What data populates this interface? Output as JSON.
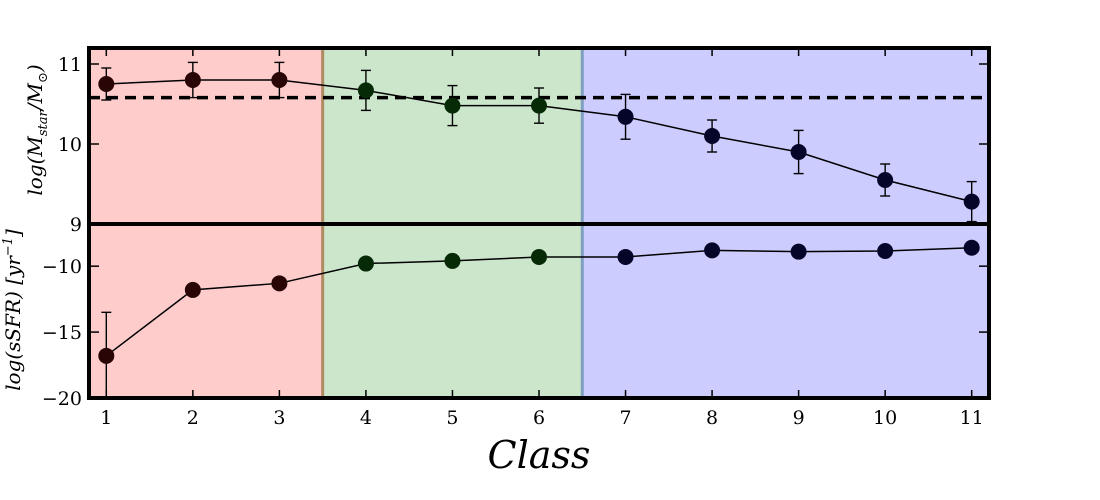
{
  "chart_data": {
    "type": "line",
    "xlabel": "Class",
    "x": [
      1,
      2,
      3,
      4,
      5,
      6,
      7,
      8,
      9,
      10,
      11
    ],
    "xlim": [
      0.8,
      11.2
    ],
    "shaded_regions": [
      {
        "from": 0.8,
        "to": 3.5,
        "color": "#ffcccc",
        "edge": "#b08a60"
      },
      {
        "from": 3.5,
        "to": 6.5,
        "color": "#cce6cc",
        "edge": "#7f9fc0"
      },
      {
        "from": 6.5,
        "to": 11.2,
        "color": "#ccccff",
        "edge": "#7f9fc0"
      }
    ],
    "panels": [
      {
        "ylabel": "log(M_star/M_⊙)",
        "ylim": [
          9,
          11.2
        ],
        "yticks": [
          9,
          10,
          11
        ],
        "values": [
          10.75,
          10.8,
          10.8,
          10.67,
          10.48,
          10.48,
          10.34,
          10.1,
          9.9,
          9.55,
          9.28
        ],
        "errors": [
          0.2,
          0.22,
          0.22,
          0.25,
          0.25,
          0.22,
          0.28,
          0.2,
          0.27,
          0.2,
          0.25
        ],
        "reference_line": 10.58
      },
      {
        "ylabel": "log(sSFR) [yr^-1]",
        "ylim": [
          -20,
          -6.8
        ],
        "yticks": [
          -20,
          -15,
          -10
        ],
        "values": [
          -16.8,
          -11.8,
          -11.3,
          -9.8,
          -9.6,
          -9.3,
          -9.3,
          -8.8,
          -8.9,
          -8.85,
          -8.6
        ],
        "errors": [
          3.3,
          0.3,
          0.3,
          0.3,
          0.2,
          0.2,
          0.2,
          0.2,
          0.2,
          0.2,
          0.2
        ]
      }
    ]
  },
  "colors": {
    "marker_red": "#2a0505",
    "marker_green": "#052a05",
    "marker_blue": "#05052a"
  }
}
